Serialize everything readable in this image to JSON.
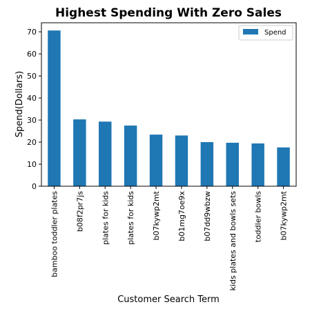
{
  "chart_data": {
    "type": "bar",
    "title": "Highest Spending With Zero Sales",
    "xlabel": "Customer Search Term",
    "ylabel": "Spend(Dollars)",
    "categories": [
      "bamboo toddler plates",
      "b08f2pr7js",
      "plates for kids",
      "plates for kids",
      "b07kywp2mt",
      "b01mg7oe9x",
      "b07dd9wbzw",
      "kids plates and bowls sets",
      "toddler bowls",
      "b07kywp2mt"
    ],
    "series": [
      {
        "name": "Spend",
        "values": [
          70.6,
          30.3,
          29.3,
          27.5,
          23.4,
          23.0,
          20.0,
          19.7,
          19.4,
          17.6
        ],
        "color": "#1f77b4"
      }
    ],
    "ylim": [
      0,
      74.1
    ],
    "yticks": [
      0,
      10,
      20,
      30,
      40,
      50,
      60,
      70
    ],
    "grid": false,
    "legend": "top-right"
  }
}
